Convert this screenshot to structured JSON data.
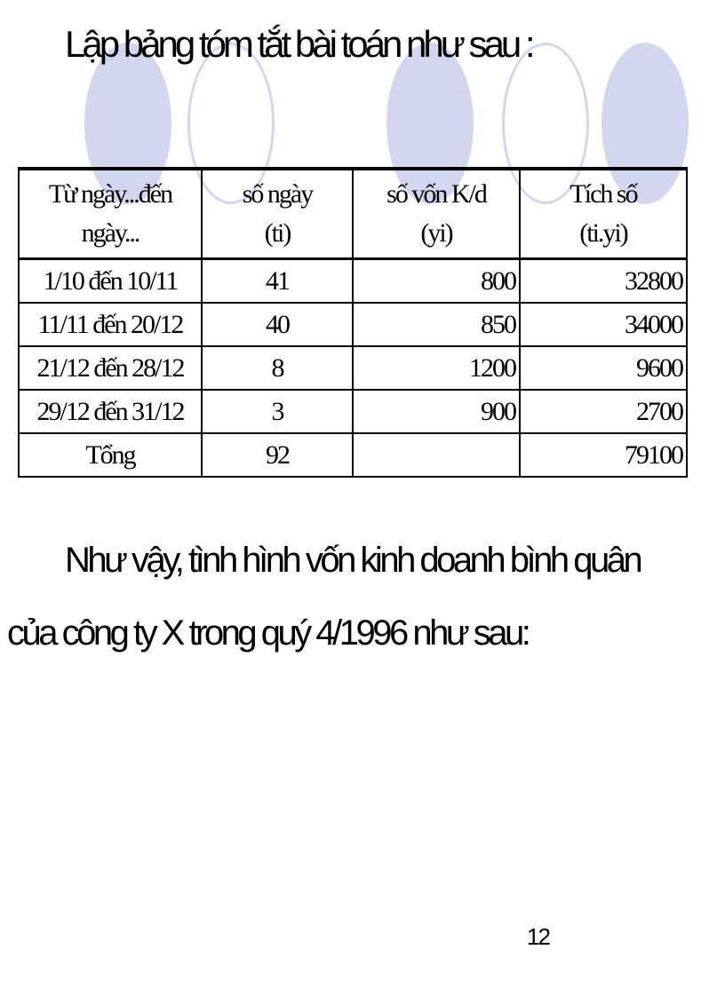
{
  "decoration": {
    "ellipse_color": "#d3d6ef",
    "ellipses": [
      "filled",
      "outline",
      "filled",
      "outline",
      "filled"
    ]
  },
  "title": "Lập bảng tóm tắt bài toán như sau :",
  "table": {
    "headers": [
      {
        "line1": "Từ ngày...đến",
        "line2": "ngày..."
      },
      {
        "line1": "số ngày",
        "line2": "(ti)"
      },
      {
        "line1": "số vốn K/d",
        "line2": "(yi)"
      },
      {
        "line1": "Tích số",
        "line2": "(ti.yi)"
      }
    ],
    "rows": [
      [
        "1/10 đến 10/11",
        "41",
        "800",
        "32800"
      ],
      [
        "11/11 đến 20/12",
        "40",
        "850",
        "34000"
      ],
      [
        "21/12 đến 28/12",
        "8",
        "1200",
        "9600"
      ],
      [
        "29/12 đến 31/12",
        "3",
        "900",
        "2700"
      ],
      [
        "Tổng",
        "92",
        "",
        "79100"
      ]
    ]
  },
  "paragraph": {
    "line1": "Như vậy, tình hình vốn kinh doanh bình quân",
    "line2": "của công ty X trong quý 4/1996 như sau:"
  },
  "page_number": "12"
}
